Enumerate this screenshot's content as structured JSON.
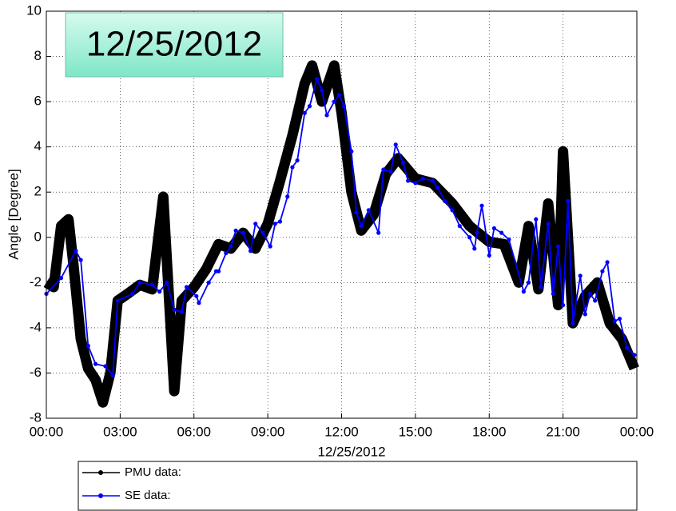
{
  "chart_data": {
    "type": "line",
    "annotation": "12/25/2012",
    "xlabel": "12/25/2012",
    "ylabel": "Angle [Degree]",
    "xlim": [
      0,
      24
    ],
    "xticks": [
      {
        "value": 0,
        "label": "00:00"
      },
      {
        "value": 3,
        "label": "03:00"
      },
      {
        "value": 6,
        "label": "06:00"
      },
      {
        "value": 9,
        "label": "09:00"
      },
      {
        "value": 12,
        "label": "12:00"
      },
      {
        "value": 15,
        "label": "15:00"
      },
      {
        "value": 18,
        "label": "18:00"
      },
      {
        "value": 21,
        "label": "21:00"
      },
      {
        "value": 24,
        "label": "00:00"
      }
    ],
    "ylim": [
      -8,
      10
    ],
    "yticks": [
      -8,
      -6,
      -4,
      -2,
      0,
      2,
      4,
      6,
      8,
      10
    ],
    "grid": true,
    "legend": "bottom",
    "series": [
      {
        "name": "PMU data:",
        "color": "#000000",
        "x": [
          0,
          0.3,
          0.6,
          0.9,
          1.1,
          1.4,
          1.7,
          2.0,
          2.3,
          2.6,
          2.9,
          3.3,
          3.8,
          4.3,
          4.75,
          5.0,
          5.2,
          5.5,
          6.0,
          6.5,
          7.0,
          7.5,
          8.0,
          8.5,
          9.0,
          9.5,
          10.0,
          10.5,
          10.8,
          11.2,
          11.7,
          12.0,
          12.4,
          12.8,
          13.3,
          13.8,
          14.3,
          15.0,
          15.7,
          16.5,
          17.2,
          18.0,
          18.6,
          19.2,
          19.6,
          20.0,
          20.4,
          20.8,
          21.0,
          21.4,
          21.9,
          22.4,
          22.9,
          23.4,
          23.9
        ],
        "values": [
          -2,
          -2.2,
          0.5,
          0.8,
          -1.2,
          -4.5,
          -5.8,
          -6.3,
          -7.3,
          -6.0,
          -2.8,
          -2.5,
          -2.1,
          -2.3,
          1.8,
          -3.0,
          -6.8,
          -2.8,
          -2.2,
          -1.4,
          -0.3,
          -0.5,
          0.2,
          -0.5,
          0.6,
          2.5,
          4.5,
          6.8,
          7.6,
          6.0,
          7.6,
          5.5,
          2.0,
          0.3,
          1.0,
          2.8,
          3.5,
          2.6,
          2.4,
          1.5,
          0.5,
          -0.2,
          -0.3,
          -2.0,
          0.5,
          -2.3,
          1.5,
          -3.0,
          3.8,
          -3.8,
          -2.6,
          -2.0,
          -3.8,
          -4.5,
          -5.8
        ]
      },
      {
        "name": "SE data:",
        "color": "#0000ff",
        "x": [
          0.0,
          0.6,
          1.2,
          1.4,
          1.7,
          2.0,
          2.4,
          2.7,
          2.9,
          3.5,
          3.8,
          4.3,
          4.6,
          4.9,
          5.2,
          5.5,
          5.7,
          6.1,
          6.2,
          6.6,
          6.9,
          7.0,
          7.3,
          7.5,
          7.7,
          8.0,
          8.3,
          8.5,
          8.8,
          9.1,
          9.3,
          9.5,
          9.8,
          10.0,
          10.2,
          10.5,
          10.7,
          11.0,
          11.2,
          11.4,
          11.7,
          11.9,
          12.1,
          12.4,
          12.6,
          12.8,
          13.1,
          13.5,
          13.7,
          14.0,
          14.2,
          14.5,
          14.7,
          15.0,
          15.3,
          15.7,
          15.9,
          16.2,
          16.5,
          16.8,
          17.2,
          17.4,
          17.5,
          17.7,
          18.0,
          18.2,
          18.5,
          18.8,
          19.4,
          19.6,
          19.9,
          20.1,
          20.4,
          20.6,
          20.8,
          21.0,
          21.2,
          21.4,
          21.7,
          21.9,
          22.1,
          22.3,
          22.6,
          22.8,
          23.1,
          23.3,
          23.6,
          23.9
        ],
        "values": [
          -2.5,
          -1.8,
          -0.6,
          -1.0,
          -4.8,
          -5.6,
          -5.7,
          -6.1,
          -2.8,
          -2.5,
          -2.0,
          -2.1,
          -2.4,
          -2.0,
          -3.2,
          -3.3,
          -2.2,
          -2.6,
          -2.9,
          -2.0,
          -1.5,
          -1.5,
          -0.7,
          -0.4,
          0.3,
          0.2,
          -0.6,
          0.6,
          0.2,
          -0.4,
          0.6,
          0.7,
          1.8,
          3.1,
          3.4,
          5.5,
          5.8,
          7.0,
          6.5,
          5.4,
          6.0,
          6.3,
          5.8,
          3.8,
          1.1,
          0.5,
          1.2,
          0.2,
          3.0,
          2.9,
          4.1,
          3.3,
          2.5,
          2.4,
          2.6,
          2.5,
          2.2,
          1.6,
          1.2,
          0.5,
          0,
          -0.5,
          0.2,
          1.4,
          -0.8,
          0.4,
          0.2,
          -0.1,
          -2.4,
          -2.0,
          0.8,
          -2.2,
          0.6,
          -2.5,
          -0.4,
          -3.0,
          1.6,
          -3.8,
          -1.7,
          -3.4,
          -2.5,
          -2.8,
          -1.5,
          -1.1,
          -3.7,
          -3.6,
          -4.9,
          -5.2
        ]
      }
    ]
  }
}
